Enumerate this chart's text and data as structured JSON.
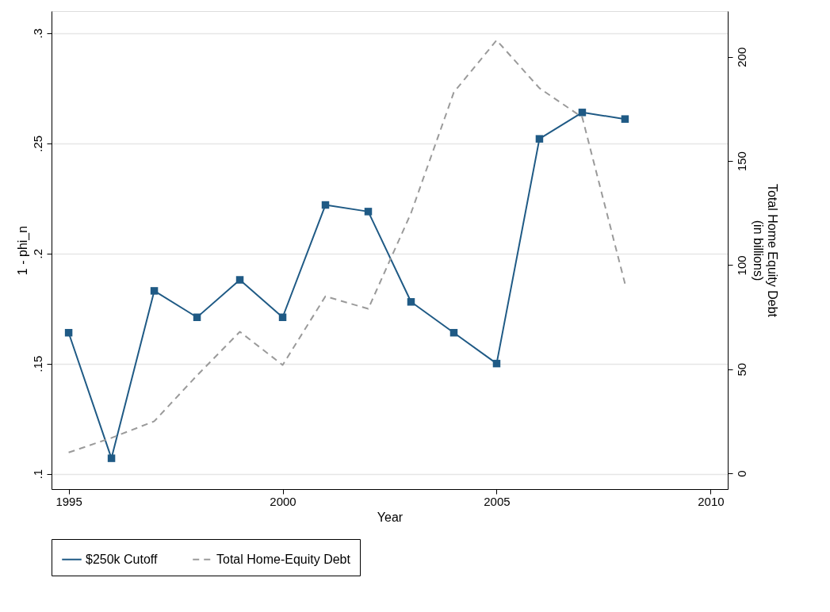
{
  "chart_data": {
    "type": "line",
    "xlabel": "Year",
    "ylabel": "1 - phi_n",
    "y2label": "Total Home Equity Debt\n(in billions)",
    "x": [
      1995,
      1996,
      1997,
      1998,
      1999,
      2000,
      2001,
      2002,
      2003,
      2004,
      2005,
      2006,
      2007,
      2008
    ],
    "series": [
      {
        "name": "$250k Cutoff",
        "color": "#1f5a85",
        "marker": "square",
        "line_style": "solid",
        "values": [
          0.164,
          0.107,
          0.183,
          0.171,
          0.188,
          0.171,
          0.222,
          0.219,
          0.178,
          0.164,
          0.15,
          0.252,
          0.264,
          0.261
        ]
      },
      {
        "name": "Total Home-Equity Debt",
        "color": "#9a9a9a",
        "marker": "none",
        "line_style": "dashed",
        "axis": "y2",
        "values": [
          10,
          17,
          25,
          47,
          68,
          52,
          85,
          79,
          125,
          183,
          208,
          185,
          171,
          91
        ]
      }
    ],
    "xlim": [
      1994.6,
      2010.4
    ],
    "xticks": [
      1995,
      2000,
      2005,
      2010
    ],
    "ylim": [
      0.093,
      0.31
    ],
    "yticks": [
      {
        "value": 0.1,
        "label": ".1"
      },
      {
        "value": 0.15,
        "label": ".15"
      },
      {
        "value": 0.2,
        "label": ".2"
      },
      {
        "value": 0.25,
        "label": ".25"
      },
      {
        "value": 0.3,
        "label": ".3"
      }
    ],
    "y2lim": [
      -7.6,
      222
    ],
    "y2ticks": [
      0,
      50,
      100,
      150,
      200
    ],
    "grid": "y",
    "legend": "bottom"
  }
}
